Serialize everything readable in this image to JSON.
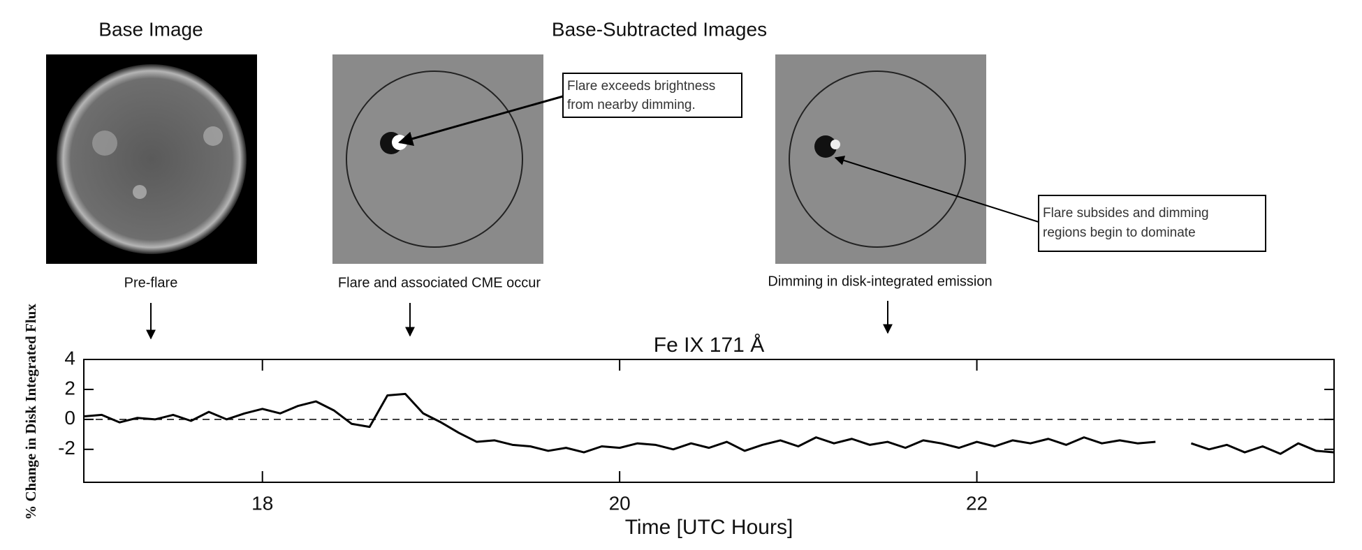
{
  "headers": {
    "left": "Base Image",
    "right": "Base-Subtracted Images"
  },
  "captions": [
    "Pre-flare",
    "Flare and associated CME occur",
    "Dimming in disk-integrated emission"
  ],
  "callouts": [
    [
      "Flare exceeds brightness",
      "from nearby dimming."
    ],
    [
      "Flare subsides and dimming",
      "regions begin to dominate"
    ]
  ],
  "chart_data": {
    "type": "line",
    "title": "Fe IX 171 Å",
    "xlabel": "Time [UTC Hours]",
    "ylabel": "% Change in Disk Integrated Flux",
    "x": [
      17.0,
      17.1,
      17.2,
      17.3,
      17.4,
      17.5,
      17.6,
      17.7,
      17.8,
      17.9,
      18.0,
      18.1,
      18.2,
      18.3,
      18.4,
      18.5,
      18.6,
      18.7,
      18.8,
      18.9,
      19.0,
      19.1,
      19.2,
      19.3,
      19.4,
      19.5,
      19.6,
      19.7,
      19.8,
      19.9,
      20.0,
      20.1,
      20.2,
      20.3,
      20.4,
      20.5,
      20.6,
      20.7,
      20.8,
      20.9,
      21.0,
      21.1,
      21.2,
      21.3,
      21.4,
      21.5,
      21.6,
      21.7,
      21.8,
      21.9,
      22.0,
      22.1,
      22.2,
      22.3,
      22.4,
      22.5,
      22.6,
      22.7,
      22.8,
      22.9,
      23.0,
      23.1,
      23.2,
      23.3,
      23.4,
      23.5,
      23.6,
      23.7,
      23.8,
      23.9,
      24.0
    ],
    "series": [
      {
        "name": "Fe IX 171",
        "color": "#000000",
        "values": [
          0.2,
          0.3,
          -0.2,
          0.1,
          0.0,
          0.3,
          -0.1,
          0.5,
          0.0,
          0.4,
          0.7,
          0.4,
          0.9,
          1.2,
          0.6,
          -0.3,
          -0.5,
          1.6,
          1.7,
          0.4,
          -0.2,
          -0.9,
          -1.5,
          -1.4,
          -1.7,
          -1.8,
          -2.1,
          -1.9,
          -2.2,
          -1.8,
          -1.9,
          -1.6,
          -1.7,
          -2.0,
          -1.6,
          -1.9,
          -1.5,
          -2.1,
          -1.7,
          -1.4,
          -1.8,
          -1.2,
          -1.6,
          -1.3,
          -1.7,
          -1.5,
          -1.9,
          -1.4,
          -1.6,
          -1.9,
          -1.5,
          -1.8,
          -1.4,
          -1.6,
          -1.3,
          -1.7,
          -1.2,
          -1.6,
          -1.4,
          -1.6,
          -1.5,
          null,
          -1.6,
          -2.0,
          -1.7,
          -2.2,
          -1.8,
          -2.3,
          -1.6,
          -2.1,
          -2.2
        ]
      }
    ],
    "xlim": [
      17,
      24
    ],
    "xticks": [
      18,
      20,
      22
    ],
    "ylim": [
      -4.2,
      4
    ],
    "yticks": [
      4,
      2,
      0,
      -2
    ],
    "hlines": [
      0
    ]
  }
}
